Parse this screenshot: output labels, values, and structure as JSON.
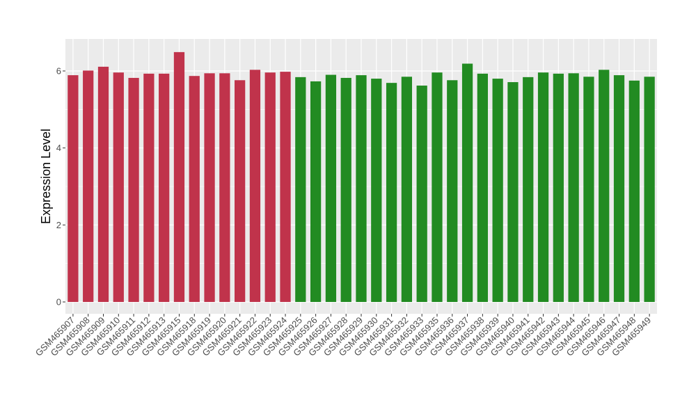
{
  "chart_data": {
    "type": "bar",
    "title": "",
    "xlabel": "",
    "ylabel": "Expression Level",
    "ylim": [
      0,
      6.8
    ],
    "yticks": [
      0,
      2,
      4,
      6
    ],
    "grid": true,
    "legend": "none",
    "colors": {
      "group1": "#c0334b",
      "group2": "#228b22",
      "panel": "#ebebeb",
      "grid": "#ffffff"
    },
    "categories": [
      "GSM465907",
      "GSM465908",
      "GSM465909",
      "GSM465910",
      "GSM465911",
      "GSM465912",
      "GSM465913",
      "GSM465915",
      "GSM465918",
      "GSM465919",
      "GSM465920",
      "GSM465921",
      "GSM465922",
      "GSM465923",
      "GSM465924",
      "GSM465925",
      "GSM465926",
      "GSM465927",
      "GSM465928",
      "GSM465929",
      "GSM465930",
      "GSM465931",
      "GSM465932",
      "GSM465933",
      "GSM465935",
      "GSM465936",
      "GSM465937",
      "GSM465938",
      "GSM465939",
      "GSM465940",
      "GSM465941",
      "GSM465942",
      "GSM465943",
      "GSM465944",
      "GSM465945",
      "GSM465946",
      "GSM465947",
      "GSM465948",
      "GSM465949"
    ],
    "values": [
      5.89,
      6.01,
      6.11,
      5.96,
      5.82,
      5.93,
      5.93,
      6.49,
      5.87,
      5.94,
      5.94,
      5.76,
      6.03,
      5.96,
      5.98,
      5.84,
      5.73,
      5.9,
      5.82,
      5.89,
      5.8,
      5.69,
      5.85,
      5.62,
      5.96,
      5.76,
      6.19,
      5.93,
      5.8,
      5.71,
      5.84,
      5.96,
      5.93,
      5.94,
      5.85,
      6.03,
      5.89,
      5.75,
      5.85
    ],
    "groups": [
      1,
      1,
      1,
      1,
      1,
      1,
      1,
      1,
      1,
      1,
      1,
      1,
      1,
      1,
      1,
      2,
      2,
      2,
      2,
      2,
      2,
      2,
      2,
      2,
      2,
      2,
      2,
      2,
      2,
      2,
      2,
      2,
      2,
      2,
      2,
      2,
      2,
      2,
      2
    ]
  }
}
